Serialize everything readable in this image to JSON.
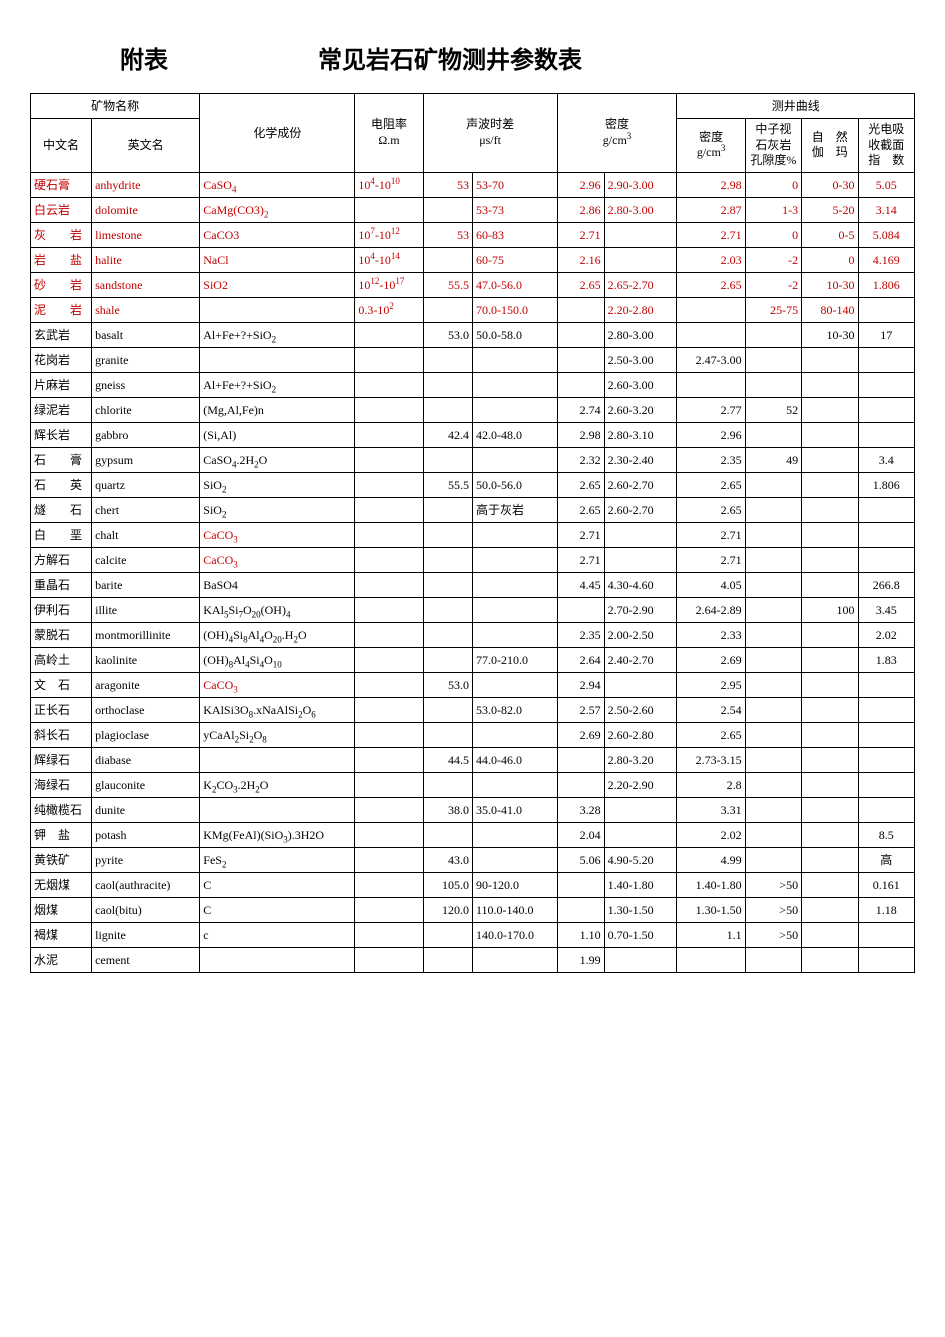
{
  "title_left": "附表",
  "title_right": "常见岩石矿物测井参数表",
  "headers": {
    "mineral_name": "矿物名称",
    "cn_name": "中文名",
    "en_name": "英文名",
    "chem": "化学成份",
    "resistivity_l1": "电阻率",
    "resistivity_l2": "Ω.m",
    "acoustic_l1": "声波时差",
    "acoustic_l2": "μs/ft",
    "density_l1": "密度",
    "density_l2": "g/cm",
    "density_sup": "3",
    "log_curves": "测井曲线",
    "log_density_l1": "密度",
    "log_density_l2": "g/cm",
    "log_density_sup": "3",
    "log_neutron_l1": "中子视",
    "log_neutron_l2": "石灰岩",
    "log_neutron_l3": "孔隙度%",
    "log_gamma_l1": "自　然",
    "log_gamma_l2": "伽　玛",
    "log_pe_l1": "光电吸",
    "log_pe_l2": "收截面",
    "log_pe_l3": "指　数"
  },
  "rows": [
    {
      "red": true,
      "cn": "硬石膏",
      "en": "anhydrite",
      "chem": "CaSO<sub>4</sub>",
      "res": "10<sup>4</sup>-10<sup>10</sup>",
      "ac1": "53",
      "ac2": "53-70",
      "d1": "2.96",
      "d2": "2.90-3.00",
      "l1": "2.98",
      "l2": "0",
      "l3": "0-30",
      "l4": "5.05"
    },
    {
      "red": true,
      "cn": "白云岩",
      "en": "dolomite",
      "chem": "CaMg(CO3)<sub>2</sub>",
      "res": "",
      "ac1": "",
      "ac2": "53-73",
      "d1": "2.86",
      "d2": "2.80-3.00",
      "l1": "2.87",
      "l2": "1-3",
      "l3": "5-20",
      "l4": "3.14"
    },
    {
      "red": true,
      "cn": "灰　　岩",
      "cnj": true,
      "en": "limestone",
      "chem": "CaCO3",
      "res": "10<sup>7</sup>-10<sup>12</sup>",
      "ac1": "53",
      "ac2": "60-83",
      "d1": "2.71",
      "d2": "",
      "l1": "2.71",
      "l2": "0",
      "l3": "0-5",
      "l4": "5.084"
    },
    {
      "red": true,
      "cn": "岩　　盐",
      "cnj": true,
      "en": "halite",
      "chem": "NaCl",
      "res": "10<sup>4</sup>-10<sup>14</sup>",
      "ac1": "",
      "ac2": "60-75",
      "d1": "2.16",
      "d2": "",
      "l1": "2.03",
      "l2": "-2",
      "l3": "0",
      "l4": "4.169"
    },
    {
      "red": true,
      "cn": "砂　　岩",
      "cnj": true,
      "en": "sandstone",
      "chem": "SiO2",
      "res": "10<sup>12</sup>-10<sup>17</sup>",
      "ac1": "55.5",
      "ac2": "47.0-56.0",
      "d1": "2.65",
      "d2": "2.65-2.70",
      "l1": "2.65",
      "l2": "-2",
      "l3": "10-30",
      "l4": "1.806"
    },
    {
      "red": true,
      "cn": "泥　　岩",
      "cnj": true,
      "en": "shale",
      "chem": "",
      "res": "0.3-10<sup>2</sup>",
      "ac1": "",
      "ac2": "70.0-150.0",
      "d1": "",
      "d2": "2.20-2.80",
      "l1": "",
      "l2": "25-75",
      "l3": "80-140",
      "l4": ""
    },
    {
      "cn": "玄武岩",
      "en": "basalt",
      "chem": "Al+Fe+?+SiO<sub>2</sub>",
      "res": "",
      "ac1": "53.0",
      "ac2": "50.0-58.0",
      "d1": "",
      "d2": "2.80-3.00",
      "l1": "",
      "l2": "",
      "l3": "10-30",
      "l4": "17"
    },
    {
      "cn": "花岗岩",
      "en": "granite",
      "chem": "",
      "res": "",
      "ac1": "",
      "ac2": "",
      "d1": "",
      "d2": "2.50-3.00",
      "l1": "2.47-3.00",
      "l2": "",
      "l3": "",
      "l4": ""
    },
    {
      "cn": "片麻岩",
      "en": "gneiss",
      "chem": "Al+Fe+?+SiO<sub>2</sub>",
      "res": "",
      "ac1": "",
      "ac2": "",
      "d1": "",
      "d2": "2.60-3.00",
      "l1": "",
      "l2": "",
      "l3": "",
      "l4": ""
    },
    {
      "cn": "绿泥岩",
      "en": "chlorite",
      "chem": "(Mg,Al,Fe)n",
      "res": "",
      "ac1": "",
      "ac2": "",
      "d1": "2.74",
      "d2": "2.60-3.20",
      "l1": "2.77",
      "l2": "52",
      "l3": "",
      "l4": ""
    },
    {
      "cn": "辉长岩",
      "en": "gabbro",
      "chem": "(Si,Al)",
      "res": "",
      "ac1": "42.4",
      "ac2": "42.0-48.0",
      "d1": "2.98",
      "d2": "2.80-3.10",
      "l1": "2.96",
      "l2": "",
      "l3": "",
      "l4": ""
    },
    {
      "cn": "石　　膏",
      "cnj": true,
      "en": "gypsum",
      "chem": "CaSO<sub>4</sub>.2H<sub>2</sub>O",
      "res": "",
      "ac1": "",
      "ac2": "",
      "d1": "2.32",
      "d2": "2.30-2.40",
      "l1": "2.35",
      "l2": "49",
      "l3": "",
      "l4": "3.4"
    },
    {
      "cn": "石　　英",
      "cnj": true,
      "en": "quartz",
      "chem": "SiO<sub>2</sub>",
      "res": "",
      "ac1": "55.5",
      "ac2": "50.0-56.0",
      "d1": "2.65",
      "d2": "2.60-2.70",
      "l1": "2.65",
      "l2": "",
      "l3": "",
      "l4": "1.806"
    },
    {
      "cn": "燧　　石",
      "cnj": true,
      "en": "chert",
      "chem": "SiO<sub>2</sub>",
      "res": "",
      "ac1": "",
      "ac2": "高于灰岩",
      "d1": "2.65",
      "d2": "2.60-2.70",
      "l1": "2.65",
      "l2": "",
      "l3": "",
      "l4": ""
    },
    {
      "cn": "白　　垩",
      "cnj": true,
      "en": "chalt",
      "chem": "CaCO<sub>3</sub>",
      "chemred": true,
      "res": "",
      "ac1": "",
      "ac2": "",
      "d1": "2.71",
      "d2": "",
      "l1": "2.71",
      "l2": "",
      "l3": "",
      "l4": ""
    },
    {
      "cn": "方解石",
      "en": "calcite",
      "chem": "CaCO<sub>3</sub>",
      "chemred": true,
      "res": "",
      "ac1": "",
      "ac2": "",
      "d1": "2.71",
      "d2": "",
      "l1": "2.71",
      "l2": "",
      "l3": "",
      "l4": ""
    },
    {
      "cn": "重晶石",
      "en": "barite",
      "chem": "BaSO4",
      "res": "",
      "ac1": "",
      "ac2": "",
      "d1": "4.45",
      "d2": "4.30-4.60",
      "l1": "4.05",
      "l2": "",
      "l3": "",
      "l4": "266.8"
    },
    {
      "cn": "伊利石",
      "en": "illite",
      "chem": "KAl<sub>5</sub>Si<sub>7</sub>O<sub>20</sub>(OH)<sub>4</sub>",
      "res": "",
      "ac1": "",
      "ac2": "",
      "d1": "",
      "d2": "2.70-2.90",
      "l1": "2.64-2.89",
      "l2": "",
      "l3": "100",
      "l4": "3.45"
    },
    {
      "cn": "蒙脱石",
      "en": "montmorillinite",
      "chem": "(OH)<sub>4</sub>Si<sub>8</sub>Al<sub>4</sub>O<sub>20</sub>.H<sub>2</sub>O",
      "res": "",
      "ac1": "",
      "ac2": "",
      "d1": "2.35",
      "d2": "2.00-2.50",
      "l1": "2.33",
      "l2": "",
      "l3": "",
      "l4": "2.02"
    },
    {
      "cn": "高岭土",
      "en": "kaolinite",
      "chem": "(OH)<sub>8</sub>Al<sub>4</sub>Si<sub>4</sub>O<sub>10</sub>",
      "res": "",
      "ac1": "",
      "ac2": "77.0-210.0",
      "d1": "2.64",
      "d2": "2.40-2.70",
      "l1": "2.69",
      "l2": "",
      "l3": "",
      "l4": "1.83"
    },
    {
      "cn": "文　石",
      "en": "aragonite",
      "chem": "CaCO<sub>3</sub>",
      "chemred": true,
      "res": "",
      "ac1": "53.0",
      "ac2": "",
      "d1": "2.94",
      "d2": "",
      "l1": "2.95",
      "l2": "",
      "l3": "",
      "l4": ""
    },
    {
      "cn": "正长石",
      "en": "orthoclase",
      "chem": "KAlSi3O<sub>8</sub>.xNaAlSi<sub>2</sub>O<sub>6</sub>",
      "res": "",
      "ac1": "",
      "ac2": "53.0-82.0",
      "d1": "2.57",
      "d2": "2.50-2.60",
      "l1": "2.54",
      "l2": "",
      "l3": "",
      "l4": ""
    },
    {
      "cn": "斜长石",
      "en": "plagioclase",
      "chem": "yCaAl<sub>2</sub>Si<sub>2</sub>O<sub>8</sub>",
      "res": "",
      "ac1": "",
      "ac2": "",
      "d1": "2.69",
      "d2": "2.60-2.80",
      "l1": "2.65",
      "l2": "",
      "l3": "",
      "l4": ""
    },
    {
      "cn": "辉绿石",
      "en": "diabase",
      "chem": "",
      "res": "",
      "ac1": "44.5",
      "ac2": "44.0-46.0",
      "d1": "",
      "d2": "2.80-3.20",
      "l1": "2.73-3.15",
      "l2": "",
      "l3": "",
      "l4": ""
    },
    {
      "cn": "海绿石",
      "en": "glauconite",
      "chem": "K<sub>2</sub>CO<sub>3</sub>.2H<sub>2</sub>O",
      "res": "",
      "ac1": "",
      "ac2": "",
      "d1": "",
      "d2": "2.20-2.90",
      "l1": "2.8",
      "l2": "",
      "l3": "",
      "l4": ""
    },
    {
      "cn": "纯橄榄石",
      "en": "dunite",
      "chem": "",
      "res": "",
      "ac1": "38.0",
      "ac2": "35.0-41.0",
      "d1": "3.28",
      "d2": "",
      "l1": "3.31",
      "l2": "",
      "l3": "",
      "l4": ""
    },
    {
      "cn": "钾　盐",
      "en": "potash",
      "chem": "KMg(FeAl)(SiO<sub>3</sub>).3H2O",
      "res": "",
      "ac1": "",
      "ac2": "",
      "d1": "2.04",
      "d2": "",
      "l1": "2.02",
      "l2": "",
      "l3": "",
      "l4": "8.5"
    },
    {
      "cn": "黄铁矿",
      "en": "pyrite",
      "chem": "FeS<sub>2</sub>",
      "res": "",
      "ac1": "43.0",
      "ac2": "",
      "d1": "5.06",
      "d2": "4.90-5.20",
      "l1": "4.99",
      "l2": "",
      "l3": "",
      "l4": "高"
    },
    {
      "cn": "无烟煤",
      "en": "caol(authracite)",
      "chem": "C",
      "res": "",
      "ac1": "105.0",
      "ac2": "90-120.0",
      "d1": "",
      "d2": "1.40-1.80",
      "l1": "1.40-1.80",
      "l2": ">50",
      "l3": "",
      "l4": "0.161"
    },
    {
      "cn": "烟煤",
      "en": "caol(bitu)",
      "chem": "C",
      "res": "",
      "ac1": "120.0",
      "ac2": "110.0-140.0",
      "d1": "",
      "d2": "1.30-1.50",
      "l1": "1.30-1.50",
      "l2": ">50",
      "l3": "",
      "l4": "1.18"
    },
    {
      "cn": "褐煤",
      "en": "lignite",
      "chem": "c",
      "res": "",
      "ac1": "",
      "ac2": "140.0-170.0",
      "d1": "1.10",
      "d2": "0.70-1.50",
      "l1": "1.1",
      "l2": ">50",
      "l3": "",
      "l4": ""
    },
    {
      "cn": "水泥",
      "en": "cement",
      "chem": "",
      "res": "",
      "ac1": "",
      "ac2": "",
      "d1": "1.99",
      "d2": "",
      "l1": "",
      "l2": "",
      "l3": "",
      "l4": ""
    }
  ],
  "colors": {
    "red": "#c00000",
    "black": "#000000",
    "border": "#000000",
    "bg": "#ffffff"
  },
  "font_sizes": {
    "title": 24,
    "header": 12,
    "cell": 12
  }
}
